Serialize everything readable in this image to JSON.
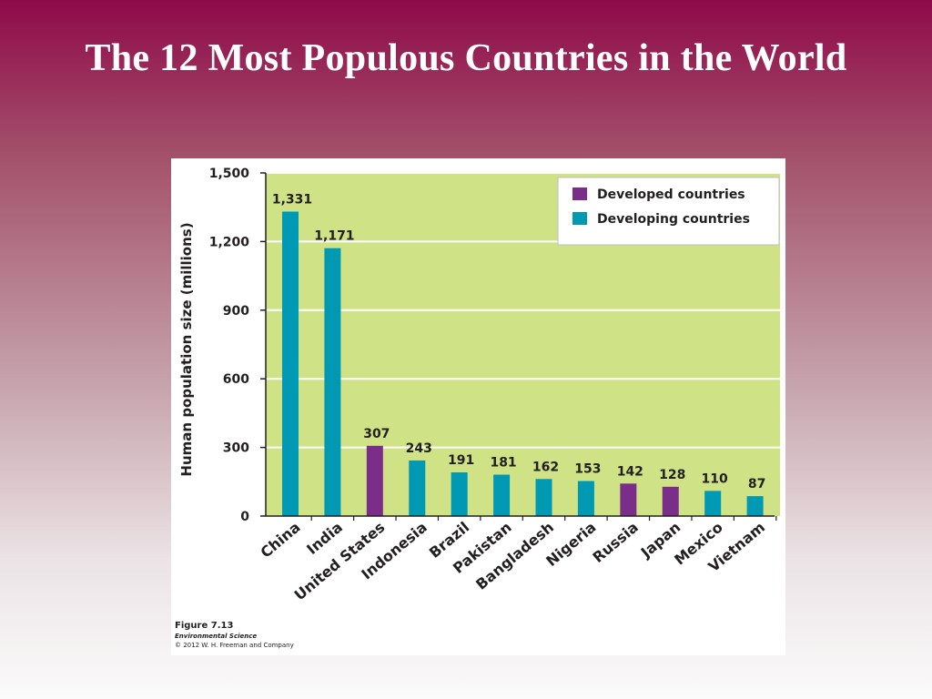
{
  "slide": {
    "title": "The 12 Most Populous Countries in the World"
  },
  "caption": {
    "figure": "Figure 7.13",
    "book": "Environmental Science",
    "copyright": "© 2012 W. H. Freeman and Company"
  },
  "colors": {
    "plot_background": "#cfe285",
    "developed": "#7a2e8a",
    "developing": "#0099b3",
    "gridline": "#ffffff"
  },
  "chart_data": {
    "type": "bar",
    "title": "",
    "xlabel": "",
    "ylabel": "Human population size (millions)",
    "ylim": [
      0,
      1500
    ],
    "yticks": [
      0,
      300,
      600,
      900,
      1200,
      1500
    ],
    "ytick_labels": [
      "0",
      "300",
      "600",
      "900",
      "1,200",
      "1,500"
    ],
    "grid": true,
    "legend_position": "top-right",
    "legend": [
      {
        "label": "Developed countries",
        "group": "developed"
      },
      {
        "label": "Developing countries",
        "group": "developing"
      }
    ],
    "categories": [
      "China",
      "India",
      "United States",
      "Indonesia",
      "Brazil",
      "Pakistan",
      "Bangladesh",
      "Nigeria",
      "Russia",
      "Japan",
      "Mexico",
      "Vietnam"
    ],
    "values": [
      1331,
      1171,
      307,
      243,
      191,
      181,
      162,
      153,
      142,
      128,
      110,
      87
    ],
    "value_labels": [
      "1,331",
      "1,171",
      "307",
      "243",
      "191",
      "181",
      "162",
      "153",
      "142",
      "128",
      "110",
      "87"
    ],
    "groups": [
      "developing",
      "developing",
      "developed",
      "developing",
      "developing",
      "developing",
      "developing",
      "developing",
      "developed",
      "developed",
      "developing",
      "developing"
    ]
  }
}
